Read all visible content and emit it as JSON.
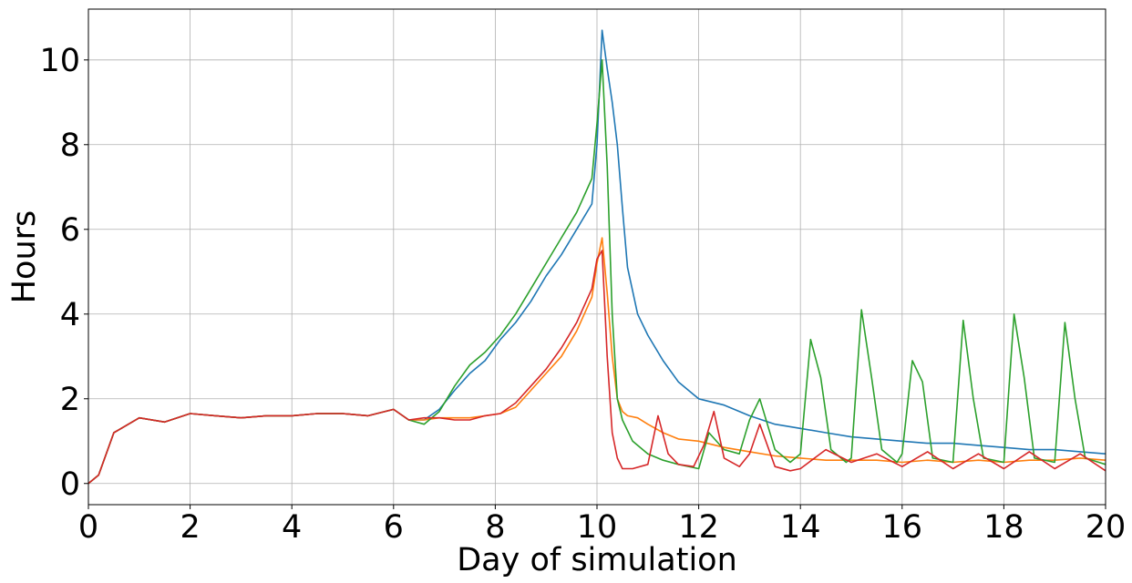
{
  "chart_data": {
    "type": "line",
    "title": "",
    "xlabel": "Day of simulation",
    "ylabel": "Hours",
    "xlim": [
      0,
      20
    ],
    "ylim": [
      -0.5,
      11.2
    ],
    "xticks": [
      0,
      2,
      4,
      6,
      8,
      10,
      12,
      14,
      16,
      18,
      20
    ],
    "yticks": [
      0,
      2,
      4,
      6,
      8,
      10
    ],
    "grid": true,
    "legend": "none",
    "series": [
      {
        "color": "#1f77b4",
        "x": [
          0,
          0.2,
          0.5,
          1,
          1.5,
          2,
          2.5,
          3,
          3.5,
          4,
          4.5,
          5,
          5.5,
          6,
          6.3,
          6.6,
          6.9,
          7.2,
          7.5,
          7.8,
          8.1,
          8.4,
          8.7,
          9,
          9.3,
          9.6,
          9.9,
          10,
          10.1,
          10.2,
          10.3,
          10.4,
          10.5,
          10.6,
          10.8,
          11,
          11.3,
          11.6,
          12,
          12.5,
          13,
          13.5,
          14,
          14.5,
          15,
          15.5,
          16,
          16.5,
          17,
          17.5,
          18,
          18.5,
          19,
          19.5,
          20
        ],
        "y": [
          0,
          0.2,
          1.2,
          1.55,
          1.45,
          1.65,
          1.6,
          1.55,
          1.6,
          1.6,
          1.65,
          1.65,
          1.6,
          1.75,
          1.5,
          1.5,
          1.75,
          2.2,
          2.6,
          2.9,
          3.4,
          3.8,
          4.3,
          4.9,
          5.4,
          6.0,
          6.6,
          8.0,
          10.7,
          9.8,
          9.0,
          8.0,
          6.5,
          5.1,
          4.0,
          3.5,
          2.9,
          2.4,
          2.0,
          1.85,
          1.6,
          1.4,
          1.3,
          1.2,
          1.1,
          1.05,
          1.0,
          0.95,
          0.95,
          0.9,
          0.85,
          0.8,
          0.8,
          0.75,
          0.7
        ]
      },
      {
        "color": "#ff7f0e",
        "x": [
          0,
          0.2,
          0.5,
          1,
          1.5,
          2,
          2.5,
          3,
          3.5,
          4,
          4.5,
          5,
          5.5,
          6,
          6.3,
          6.6,
          6.9,
          7.2,
          7.5,
          7.8,
          8.1,
          8.4,
          8.7,
          9,
          9.3,
          9.6,
          9.9,
          10,
          10.1,
          10.2,
          10.3,
          10.4,
          10.5,
          10.6,
          10.8,
          11,
          11.3,
          11.6,
          12,
          12.5,
          13,
          13.5,
          14,
          14.5,
          15,
          15.5,
          16,
          16.5,
          17,
          17.5,
          18,
          18.5,
          19,
          19.5,
          20
        ],
        "y": [
          0,
          0.2,
          1.2,
          1.55,
          1.45,
          1.65,
          1.6,
          1.55,
          1.6,
          1.6,
          1.65,
          1.65,
          1.6,
          1.75,
          1.5,
          1.5,
          1.55,
          1.55,
          1.55,
          1.6,
          1.65,
          1.8,
          2.2,
          2.6,
          3.0,
          3.6,
          4.4,
          5.2,
          5.8,
          4.5,
          3.0,
          2.0,
          1.7,
          1.6,
          1.55,
          1.4,
          1.2,
          1.05,
          1.0,
          0.85,
          0.75,
          0.65,
          0.6,
          0.55,
          0.55,
          0.55,
          0.5,
          0.55,
          0.5,
          0.55,
          0.5,
          0.55,
          0.55,
          0.6,
          0.55
        ]
      },
      {
        "color": "#2ca02c",
        "x": [
          0,
          0.2,
          0.5,
          1,
          1.5,
          2,
          2.5,
          3,
          3.5,
          4,
          4.5,
          5,
          5.5,
          6,
          6.3,
          6.6,
          6.9,
          7.2,
          7.5,
          7.8,
          8.1,
          8.4,
          8.7,
          9,
          9.3,
          9.6,
          9.9,
          10,
          10.1,
          10.2,
          10.3,
          10.4,
          10.5,
          10.7,
          11,
          11.3,
          11.6,
          12,
          12.2,
          12.5,
          12.8,
          13.0,
          13.2,
          13.5,
          13.8,
          14.0,
          14.2,
          14.4,
          14.6,
          14.9,
          15.0,
          15.2,
          15.4,
          15.6,
          15.9,
          16.0,
          16.2,
          16.4,
          16.6,
          17.0,
          17.2,
          17.4,
          17.6,
          18.0,
          18.2,
          18.4,
          18.6,
          19.0,
          19.2,
          19.4,
          19.6,
          20
        ],
        "y": [
          0,
          0.2,
          1.2,
          1.55,
          1.45,
          1.65,
          1.6,
          1.55,
          1.6,
          1.6,
          1.65,
          1.65,
          1.6,
          1.75,
          1.5,
          1.4,
          1.7,
          2.3,
          2.8,
          3.1,
          3.5,
          4.0,
          4.6,
          5.2,
          5.8,
          6.4,
          7.2,
          8.5,
          10.0,
          7.5,
          4.0,
          2.0,
          1.5,
          1.0,
          0.7,
          0.55,
          0.45,
          0.35,
          1.2,
          0.8,
          0.7,
          1.5,
          2.0,
          0.8,
          0.5,
          0.7,
          3.4,
          2.5,
          0.8,
          0.5,
          0.6,
          4.1,
          2.5,
          0.8,
          0.5,
          0.7,
          2.9,
          2.4,
          0.6,
          0.5,
          3.85,
          2.0,
          0.6,
          0.5,
          4.0,
          2.5,
          0.6,
          0.5,
          3.8,
          2.0,
          0.6,
          0.45
        ]
      },
      {
        "color": "#d62728",
        "x": [
          0,
          0.2,
          0.5,
          1,
          1.5,
          2,
          2.5,
          3,
          3.5,
          4,
          4.5,
          5,
          5.5,
          6,
          6.3,
          6.6,
          6.9,
          7.2,
          7.5,
          7.8,
          8.1,
          8.4,
          8.7,
          9,
          9.3,
          9.6,
          9.9,
          10.0,
          10.1,
          10.2,
          10.3,
          10.4,
          10.5,
          10.7,
          11.0,
          11.2,
          11.4,
          11.6,
          11.9,
          12.1,
          12.3,
          12.5,
          12.8,
          13.0,
          13.2,
          13.5,
          13.8,
          14.0,
          14.5,
          15.0,
          15.5,
          16.0,
          16.5,
          17.0,
          17.5,
          18.0,
          18.5,
          19.0,
          19.5,
          20
        ],
        "y": [
          0,
          0.2,
          1.2,
          1.55,
          1.45,
          1.65,
          1.6,
          1.55,
          1.6,
          1.6,
          1.65,
          1.65,
          1.6,
          1.75,
          1.5,
          1.55,
          1.55,
          1.5,
          1.5,
          1.6,
          1.65,
          1.9,
          2.3,
          2.7,
          3.2,
          3.8,
          4.6,
          5.3,
          5.5,
          3.0,
          1.2,
          0.6,
          0.35,
          0.35,
          0.45,
          1.6,
          0.7,
          0.45,
          0.4,
          0.9,
          1.7,
          0.6,
          0.4,
          0.7,
          1.4,
          0.4,
          0.3,
          0.35,
          0.8,
          0.5,
          0.7,
          0.4,
          0.75,
          0.35,
          0.7,
          0.35,
          0.75,
          0.35,
          0.7,
          0.3
        ]
      }
    ]
  }
}
